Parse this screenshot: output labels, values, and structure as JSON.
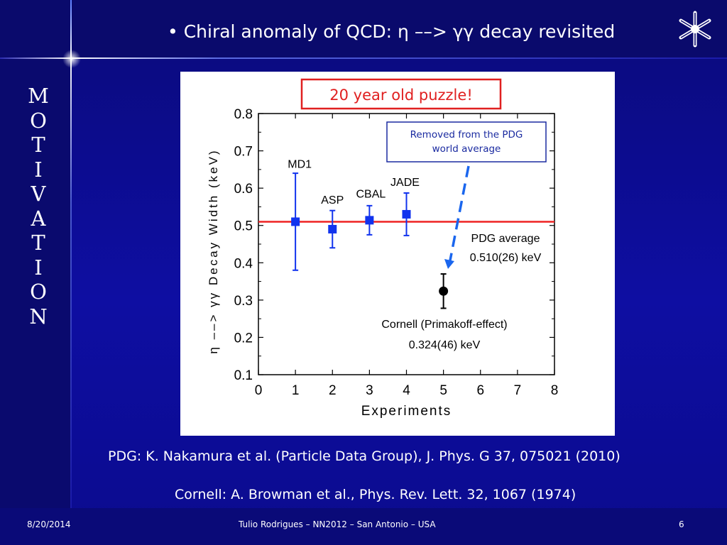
{
  "slide": {
    "title": "• Chiral anomaly of QCD: η ––> γγ decay revisited",
    "side_word": "MOTIVATION",
    "logo_icon": "six-pointed-molecule-icon"
  },
  "references": {
    "pdg": "PDG: K. Nakamura et al. (Particle Data Group), J. Phys. G 37, 075021 (2010)",
    "cornell": "Cornell: A. Browman et al., Phys. Rev. Lett. 32, 1067 (1974)"
  },
  "footer": {
    "date": "8/20/2014",
    "center": "Tulio Rodrigues – NN2012 – San Antonio – USA",
    "page": "6"
  },
  "chart_data": {
    "type": "scatter",
    "xlabel": "Experiments",
    "ylabel": "η ––> γγ  Decay Width (keV)",
    "xlim": [
      0,
      8
    ],
    "ylim": [
      0.1,
      0.8
    ],
    "x_ticks": [
      "0",
      "1",
      "2",
      "3",
      "4",
      "5",
      "6",
      "7",
      "8"
    ],
    "y_ticks": [
      "0.1",
      "0.2",
      "0.3",
      "0.4",
      "0.5",
      "0.6",
      "0.7",
      "0.8"
    ],
    "series": [
      {
        "marker": "square",
        "color": "#1133ee",
        "points": [
          {
            "label": "MD1",
            "x": 1,
            "y": 0.51,
            "low": 0.38,
            "high": 0.64
          },
          {
            "label": "ASP",
            "x": 2,
            "y": 0.49,
            "low": 0.44,
            "high": 0.54
          },
          {
            "label": "CBAL",
            "x": 3,
            "y": 0.514,
            "low": 0.475,
            "high": 0.553
          },
          {
            "label": "JADE",
            "x": 4,
            "y": 0.53,
            "low": 0.473,
            "high": 0.587
          }
        ]
      },
      {
        "marker": "circle",
        "color": "#000000",
        "points": [
          {
            "label": "",
            "x": 5,
            "y": 0.324,
            "low": 0.278,
            "high": 0.37
          }
        ]
      }
    ],
    "reference_line": {
      "y": 0.51,
      "color": "#ee2222"
    },
    "annotations": {
      "puzzle": "20 year old puzzle!",
      "removed": [
        "Removed from the PDG",
        "world average"
      ],
      "pdg_label": "PDG average",
      "pdg_value": "0.510(26) keV",
      "cornell_label": "Cornell (Primakoff-effect)",
      "cornell_value": "0.324(46) keV"
    }
  }
}
